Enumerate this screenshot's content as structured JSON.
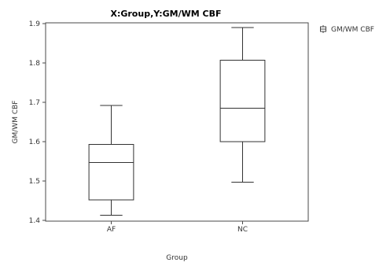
{
  "chart_data": {
    "type": "boxplot",
    "title": "X:Group,Y:GM/WM CBF",
    "xlabel": "Group",
    "ylabel": "GM/WM CBF",
    "ylim": [
      1.4,
      1.9
    ],
    "yticks": [
      "1.4",
      "1.5",
      "1.6",
      "1.7",
      "1.8",
      "1.9"
    ],
    "categories": [
      "AF",
      "NC"
    ],
    "boxes": [
      {
        "category": "AF",
        "min": 1.413,
        "q1": 1.452,
        "median": 1.547,
        "q3": 1.593,
        "max": 1.692
      },
      {
        "category": "NC",
        "min": 1.497,
        "q1": 1.6,
        "median": 1.685,
        "q3": 1.807,
        "max": 1.89
      }
    ],
    "legend": {
      "label": "GM/WM CBF",
      "position": "top-right"
    },
    "grid": false
  }
}
